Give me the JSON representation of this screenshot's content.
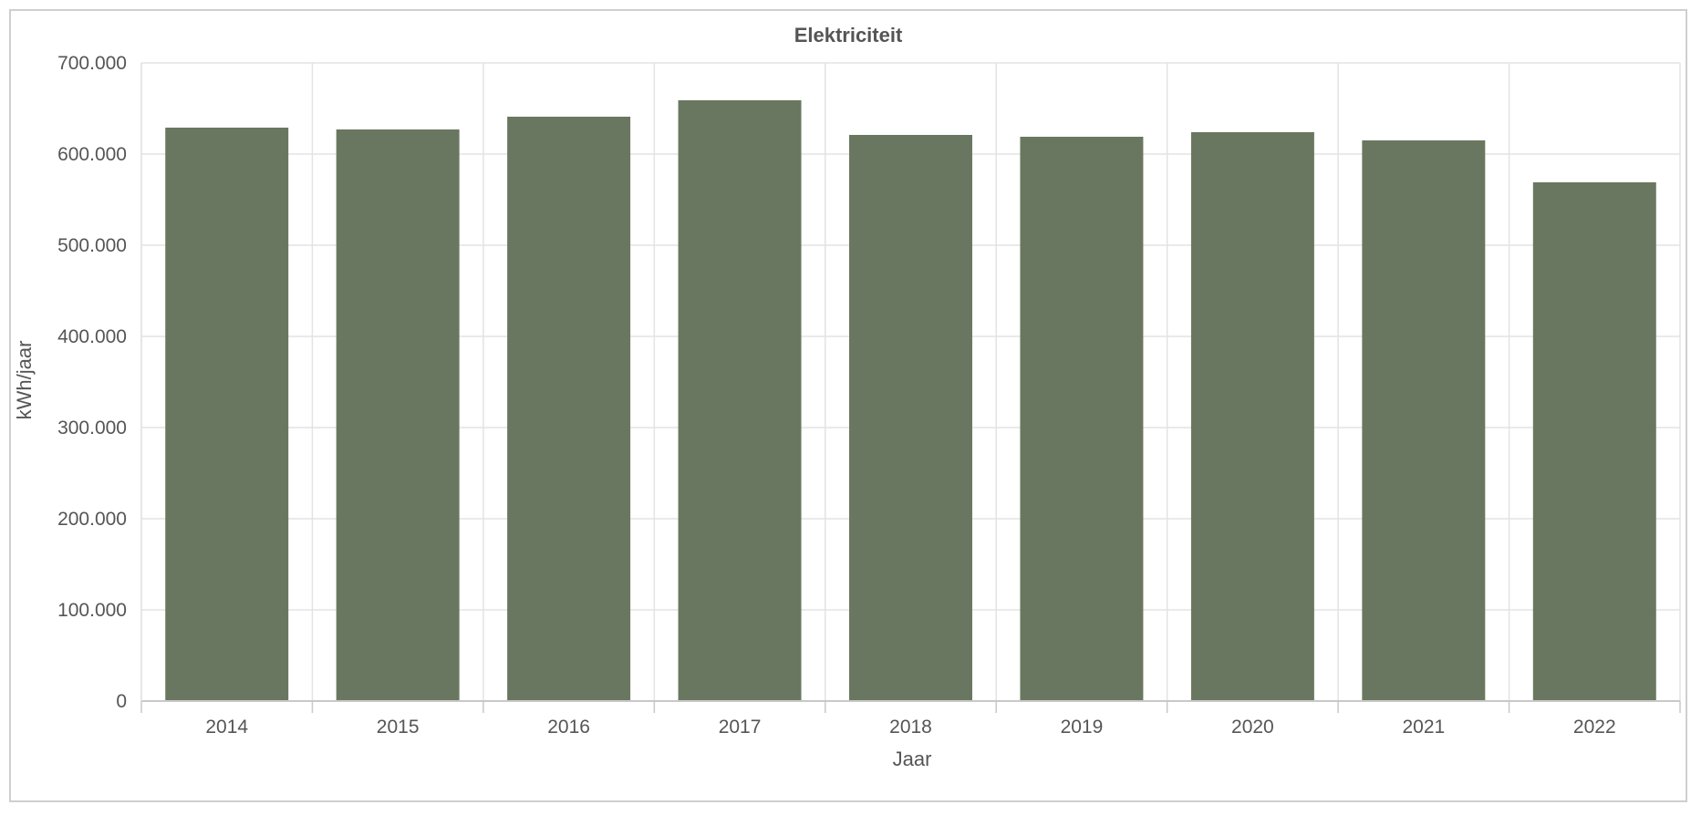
{
  "chart_data": {
    "type": "bar",
    "title": "Elektriciteit",
    "xlabel": "Jaar",
    "ylabel": "kWh/jaar",
    "categories": [
      "2014",
      "2015",
      "2016",
      "2017",
      "2018",
      "2019",
      "2020",
      "2021",
      "2022"
    ],
    "values": [
      629000,
      627000,
      641000,
      659000,
      621000,
      619000,
      624000,
      615000,
      569000
    ],
    "ylim": [
      0,
      700000
    ],
    "yticks": [
      0,
      100000,
      200000,
      300000,
      400000,
      500000,
      600000,
      700000
    ],
    "ytick_labels": [
      "0",
      "100.000",
      "200.000",
      "300.000",
      "400.000",
      "500.000",
      "600.000",
      "700.000"
    ],
    "grid": true,
    "legend": "none",
    "colors": {
      "bar": "#6a7760",
      "grid": "#e3e3e3",
      "axis": "#c8c8c8",
      "text": "#555555"
    }
  }
}
